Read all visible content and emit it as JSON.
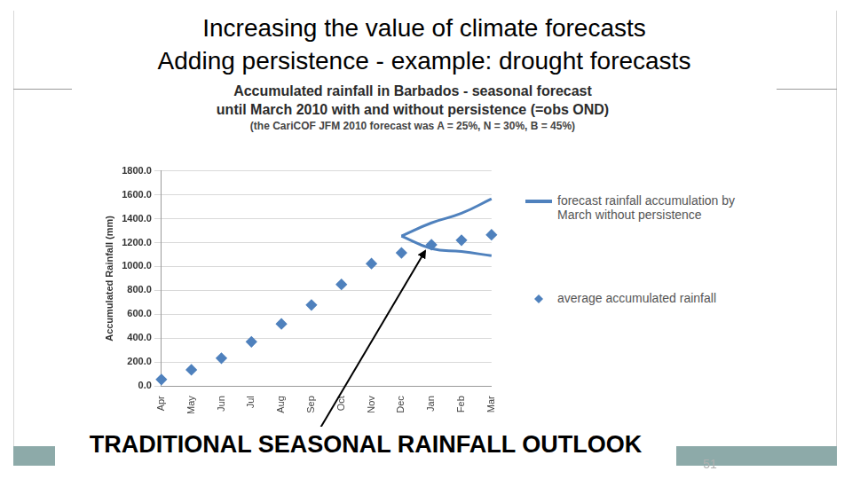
{
  "slide": {
    "title": "Increasing the value of climate forecasts",
    "subtitle": "Adding persistence - example: drought forecasts",
    "page_number": 51
  },
  "chart_data": {
    "type": "line",
    "title": [
      "Accumulated rainfall in Barbados - seasonal forecast",
      "until March 2010 with and without persistence (=obs OND)"
    ],
    "subtitle": "(the CariCOF JFM 2010 forecast was A = 25%, N = 30%, B = 45%)",
    "y_label": "Accumulated Rainfall (mm)",
    "categories": [
      "Apr",
      "May",
      "Jun",
      "Jul",
      "Aug",
      "Sep",
      "Oct",
      "Nov",
      "Dec",
      "Jan",
      "Feb",
      "Mar"
    ],
    "series": [
      {
        "name": "forecast rainfall accumulation by March without persistence",
        "type": "line",
        "color": "#4f81bd",
        "marker": "none",
        "line_style": "solid",
        "values": [
          null,
          null,
          null,
          null,
          null,
          null,
          null,
          null,
          1255,
          1365,
          1445,
          1566
        ],
        "lower": [
          null,
          null,
          null,
          null,
          null,
          null,
          null,
          null,
          1255,
          1150,
          1125,
          1090
        ]
      },
      {
        "name": "average accumulated rainfall",
        "type": "scatter",
        "color": "#4f81bd",
        "marker": "diamond",
        "line_style": "none",
        "values": [
          55,
          136,
          233,
          370,
          520,
          678,
          850,
          1024,
          1114,
          1182,
          1220,
          1265
        ]
      }
    ],
    "ylim": [
      0,
      1800
    ],
    "yticks": [
      {
        "value": 0,
        "label": "0.0"
      },
      {
        "value": 200,
        "label": "200.0"
      },
      {
        "value": 400,
        "label": "400.0"
      },
      {
        "value": 600,
        "label": "600.0"
      },
      {
        "value": 800,
        "label": "800.0"
      },
      {
        "value": 1000,
        "label": "1000.0"
      },
      {
        "value": 1200,
        "label": "1200.0"
      },
      {
        "value": 1400,
        "label": "1400.0"
      },
      {
        "value": 1600,
        "label": "1600.0"
      },
      {
        "value": 1800,
        "label": "1800.0"
      }
    ],
    "grid": true,
    "legend": "right",
    "annotation": "TRADITIONAL SEASONAL RAINFALL OUTLOOK"
  }
}
